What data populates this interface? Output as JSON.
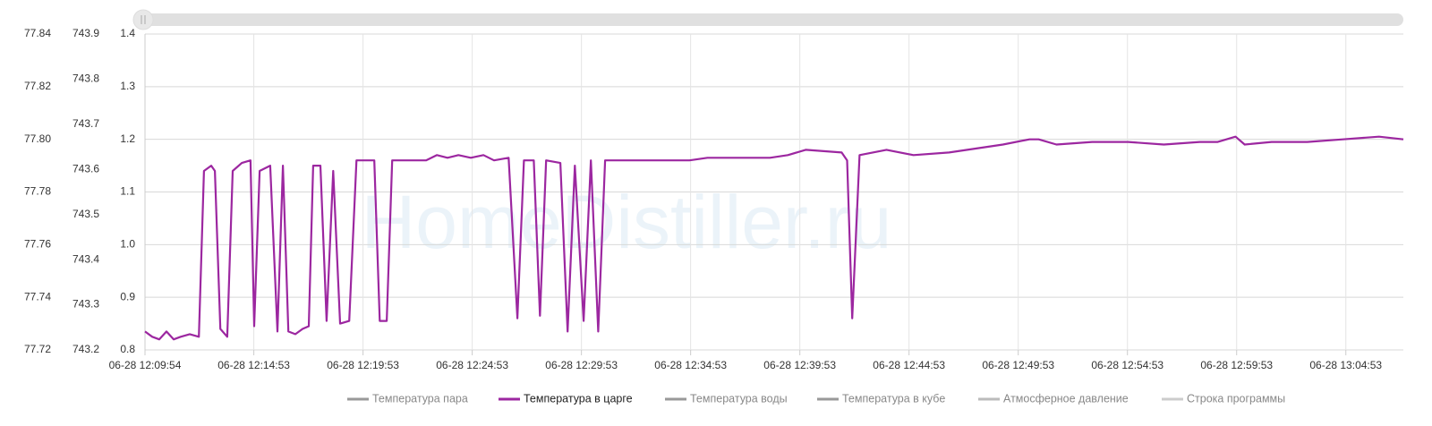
{
  "chart_data": {
    "type": "line",
    "watermark": "HomeDistiller.ru",
    "x": [
      594,
      614,
      633,
      653,
      673,
      692,
      717,
      742,
      756,
      776,
      786,
      801,
      820,
      835,
      860,
      884,
      894,
      909,
      938,
      958,
      973,
      988,
      1007,
      1027,
      1044,
      1056,
      1076,
      1093,
      1111,
      1130,
      1155,
      1175,
      1199,
      1224,
      1239,
      1258,
      1273,
      1317,
      1366,
      1396,
      1425,
      1455,
      1489,
      1524,
      1553,
      1593,
      1617,
      1635,
      1662,
      1679,
      1696,
      1735,
      1755,
      1775,
      1799,
      1819,
      1839,
      1858,
      1991,
      2090,
      2139,
      2213,
      2311,
      2360,
      2409,
      2508,
      2523,
      2537,
      2557,
      2631,
      2705,
      2803,
      2901,
      2951,
      3024,
      3049,
      3098,
      3196,
      3295,
      3393,
      3492,
      3541,
      3590,
      3615,
      3689,
      3787,
      3885,
      3984,
      4051
    ],
    "xlim": [
      594,
      4051
    ],
    "xticks": [
      {
        "value": 594,
        "label": "06-28 12:09:54"
      },
      {
        "value": 893,
        "label": "06-28 12:14:53"
      },
      {
        "value": 1193,
        "label": "06-28 12:19:53"
      },
      {
        "value": 1493,
        "label": "06-28 12:24:53"
      },
      {
        "value": 1793,
        "label": "06-28 12:29:53"
      },
      {
        "value": 2093,
        "label": "06-28 12:34:53"
      },
      {
        "value": 2393,
        "label": "06-28 12:39:53"
      },
      {
        "value": 2693,
        "label": "06-28 12:44:53"
      },
      {
        "value": 2993,
        "label": "06-28 12:49:53"
      },
      {
        "value": 3293,
        "label": "06-28 12:54:53"
      },
      {
        "value": 3593,
        "label": "06-28 12:59:53"
      },
      {
        "value": 3893,
        "label": "06-28 13:04:53"
      }
    ],
    "ylim": [
      77.72,
      77.84
    ],
    "yticks": [
      77.72,
      77.74,
      77.76,
      77.78,
      {
        "value": 77.8,
        "label": "77.80"
      },
      77.82,
      77.84
    ],
    "y2lim": [
      743.2,
      743.9
    ],
    "y2ticks": [
      743.2,
      743.3,
      743.4,
      743.5,
      743.6,
      743.7,
      743.8,
      743.9
    ],
    "y3lim": [
      0.8,
      1.4
    ],
    "y3ticks": [
      0.8,
      0.9,
      {
        "value": 1,
        "label": "1.0"
      },
      1.1,
      1.2,
      1.3,
      1.4
    ],
    "grid": true,
    "series": [
      {
        "name": "Температура пара",
        "color": "#999999",
        "visible": false
      },
      {
        "name": "Температура в царге",
        "color": "#9c27a0",
        "visible": true,
        "values": [
          77.727,
          77.725,
          77.724,
          77.727,
          77.724,
          77.725,
          77.726,
          77.725,
          77.788,
          77.79,
          77.788,
          77.728,
          77.725,
          77.788,
          77.791,
          77.792,
          77.729,
          77.788,
          77.79,
          77.727,
          77.79,
          77.727,
          77.726,
          77.728,
          77.729,
          77.79,
          77.79,
          77.731,
          77.788,
          77.73,
          77.731,
          77.792,
          77.792,
          77.792,
          77.731,
          77.731,
          77.792,
          77.792,
          77.792,
          77.794,
          77.793,
          77.794,
          77.793,
          77.794,
          77.792,
          77.793,
          77.732,
          77.792,
          77.792,
          77.733,
          77.792,
          77.791,
          77.727,
          77.79,
          77.731,
          77.792,
          77.727,
          77.792,
          77.792,
          77.792,
          77.793,
          77.793,
          77.793,
          77.794,
          77.796,
          77.795,
          77.792,
          77.732,
          77.794,
          77.796,
          77.794,
          77.795,
          77.797,
          77.798,
          77.8,
          77.8,
          77.798,
          77.799,
          77.799,
          77.798,
          77.799,
          77.799,
          77.801,
          77.798,
          77.799,
          77.799,
          77.8,
          77.801,
          77.8
        ]
      },
      {
        "name": "Температура воды",
        "color": "#999999",
        "visible": false
      },
      {
        "name": "Температура в кубе",
        "color": "#999999",
        "visible": false
      },
      {
        "name": "Атмосферное давление",
        "color": "#bbbbbb",
        "visible": false
      },
      {
        "name": "Строка программы",
        "color": "#cccccc",
        "visible": false
      }
    ]
  }
}
